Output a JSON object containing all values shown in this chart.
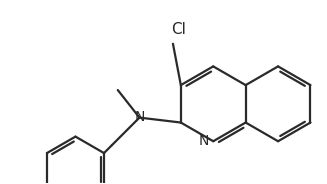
{
  "bg_color": "#ffffff",
  "line_color": "#2a2a2a",
  "line_width": 1.6,
  "figsize": [
    3.27,
    1.84
  ],
  "dpi": 100,
  "xlim": [
    0,
    327
  ],
  "ylim": [
    0,
    184
  ]
}
